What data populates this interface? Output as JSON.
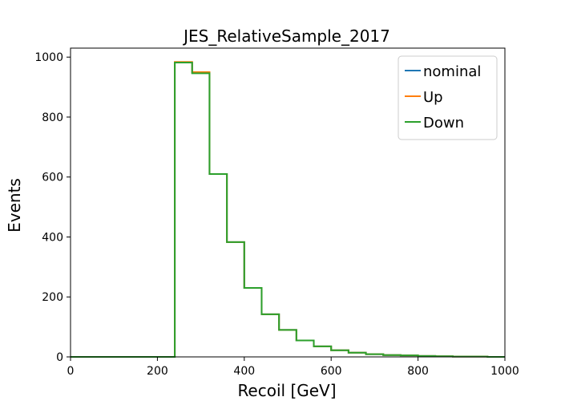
{
  "chart_data": {
    "type": "line",
    "style": "step",
    "title": "JES_RelativeSample_2017",
    "xlabel": "Recoil [GeV]",
    "ylabel": "Events",
    "xlim": [
      0,
      1000
    ],
    "ylim": [
      0,
      1030
    ],
    "grid": false,
    "legend_position": "top-right",
    "xticks": [
      0,
      200,
      400,
      600,
      800,
      1000
    ],
    "yticks": [
      0,
      200,
      400,
      600,
      800,
      1000
    ],
    "bin_edges": [
      0,
      40,
      80,
      120,
      160,
      200,
      240,
      280,
      320,
      360,
      400,
      440,
      480,
      520,
      560,
      600,
      640,
      680,
      720,
      760,
      800,
      840,
      880,
      920,
      960,
      1000
    ],
    "series": [
      {
        "name": "nominal",
        "color": "#1f77b4",
        "values": [
          0,
          0,
          0,
          0,
          0,
          0,
          982,
          948,
          610,
          383,
          230,
          142,
          90,
          55,
          35,
          22,
          14,
          9,
          6,
          5,
          3,
          2,
          1,
          1,
          0
        ]
      },
      {
        "name": "Up",
        "color": "#ff7f0e",
        "values": [
          0,
          0,
          0,
          0,
          0,
          0,
          984,
          950,
          610,
          383,
          230,
          142,
          90,
          55,
          35,
          22,
          14,
          9,
          6,
          5,
          3,
          2,
          1,
          1,
          0
        ]
      },
      {
        "name": "Down",
        "color": "#2ca02c",
        "values": [
          0,
          0,
          0,
          0,
          0,
          0,
          982,
          946,
          610,
          383,
          230,
          142,
          90,
          55,
          35,
          22,
          14,
          9,
          6,
          5,
          3,
          2,
          1,
          1,
          0
        ]
      }
    ]
  }
}
